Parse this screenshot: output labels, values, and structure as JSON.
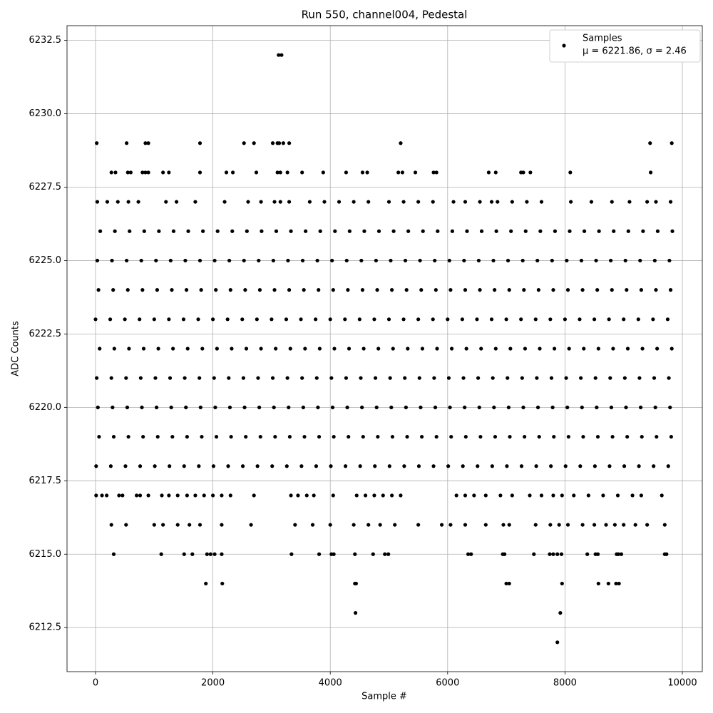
{
  "chart_data": {
    "type": "scatter",
    "title": "Run 550, channel004, Pedestal",
    "xlabel": "Sample #",
    "ylabel": "ADC Counts",
    "xlim": [
      -486,
      10340
    ],
    "ylim": [
      6211.0,
      6233.0
    ],
    "xticks": [
      0,
      2000,
      4000,
      6000,
      8000,
      10000
    ],
    "yticks": [
      6212.5,
      {
        "value": 6215,
        "label": "6215.0"
      },
      6217.5,
      {
        "value": 6220,
        "label": "6220.0"
      },
      6222.5,
      {
        "value": 6225,
        "label": "6225.0"
      },
      6227.5,
      {
        "value": 6230,
        "label": "6230.0"
      },
      6232.5
    ],
    "grid": true,
    "legend_position": "upper right",
    "legend_text": "μ = 6221.86, σ = 2.46",
    "x": [
      10,
      260,
      510,
      760,
      1010,
      1260,
      1510,
      1760,
      2010,
      2260,
      2510,
      2760,
      3010,
      3260,
      3510,
      3760,
      4010,
      4260,
      4510,
      4760,
      5010,
      5260,
      5510,
      5760,
      6010,
      6260,
      6510,
      6760,
      7010,
      7260,
      7510,
      7760,
      8010,
      8260,
      8510,
      8760,
      9010,
      9260,
      9510,
      9760,
      60,
      310,
      560,
      810,
      1060,
      1310,
      1560,
      1810,
      2060,
      2310,
      2560,
      2810,
      3060,
      3310,
      3560,
      3810,
      4060,
      4310,
      4560,
      4810,
      5060,
      5310,
      5560,
      5810,
      6060,
      6310,
      6560,
      6810,
      7060,
      7310,
      7560,
      7810,
      8060,
      8310,
      8560,
      8810,
      9060,
      9310,
      9560,
      9810,
      40,
      290,
      540,
      790,
      1040,
      1290,
      1540,
      1790,
      2040,
      2290,
      2540,
      2790,
      3040,
      3290,
      3540,
      3790,
      4040,
      4290,
      4540,
      4790,
      5040,
      5290,
      5540,
      5790,
      6040,
      6290,
      6540,
      6790,
      7040,
      7290,
      7540,
      7790,
      8040,
      8290,
      8540,
      8790,
      9040,
      9290,
      9540,
      9790,
      20,
      270,
      520,
      770,
      1020,
      1270,
      1520,
      1770,
      2020,
      2270,
      2520,
      2770,
      3020,
      3270,
      3520,
      3770,
      4020,
      4270,
      4520,
      4770,
      5020,
      5270,
      5520,
      5770,
      6020,
      6270,
      6520,
      6770,
      7020,
      7270,
      7520,
      7770,
      8020,
      8270,
      8520,
      8770,
      9020,
      9270,
      9520,
      9770,
      70,
      320,
      570,
      820,
      1070,
      1320,
      1570,
      1820,
      2070,
      2320,
      2570,
      2820,
      3070,
      3320,
      3570,
      3820,
      4070,
      4320,
      4570,
      4820,
      5070,
      5320,
      5570,
      5820,
      6070,
      6320,
      6570,
      6820,
      7070,
      7320,
      7570,
      7820,
      8070,
      8320,
      8570,
      8820,
      9070,
      9320,
      9570,
      9820,
      0,
      250,
      500,
      750,
      1000,
      1250,
      1500,
      1750,
      2000,
      2250,
      2500,
      2750,
      3000,
      3250,
      3500,
      3750,
      4000,
      4250,
      4500,
      4750,
      5000,
      5250,
      5500,
      5750,
      6000,
      6250,
      6500,
      6750,
      7000,
      7250,
      7500,
      7750,
      8000,
      8250,
      8500,
      8750,
      9000,
      9250,
      9500,
      9750,
      50,
      300,
      550,
      800,
      1050,
      1300,
      1550,
      1800,
      2050,
      2300,
      2550,
      2800,
      3050,
      3300,
      3550,
      3800,
      4050,
      4300,
      4550,
      4800,
      5050,
      5300,
      5550,
      5800,
      6050,
      6300,
      6550,
      6800,
      7050,
      7300,
      7550,
      7800,
      8050,
      8300,
      8550,
      8800,
      9050,
      9300,
      9550,
      9800,
      30,
      280,
      530,
      780,
      1030,
      1280,
      1530,
      1780,
      2030,
      2280,
      2530,
      2780,
      3030,
      3280,
      3530,
      3780,
      4030,
      4280,
      4530,
      4780,
      5030,
      5280,
      5530,
      5780,
      6030,
      6280,
      6530,
      6780,
      7030,
      7280,
      7530,
      7780,
      8030,
      8280,
      8530,
      8780,
      9030,
      9280,
      9530,
      9780,
      80,
      330,
      580,
      830,
      1080,
      1330,
      1580,
      1830,
      2080,
      2330,
      2580,
      2830,
      3080,
      3330,
      3580,
      3830,
      4080,
      4330,
      4580,
      4830,
      5080,
      5330,
      5580,
      5830,
      6080,
      6330,
      6580,
      6830,
      7080,
      7330,
      7580,
      7830,
      8080,
      8330,
      8580,
      8830,
      9080,
      9330,
      9580,
      9830,
      30,
      200,
      380,
      560,
      730,
      1200,
      1380,
      1700,
      2200,
      2600,
      2820,
      3050,
      3150,
      3300,
      3650,
      3900,
      4150,
      4400,
      4650,
      5000,
      5250,
      5500,
      5750,
      6100,
      6300,
      6550,
      6750,
      6850,
      7100,
      7350,
      7600,
      8100,
      8450,
      8800,
      9100,
      9400,
      9550,
      9800,
      10,
      110,
      190,
      400,
      460,
      700,
      760,
      900,
      1130,
      1250,
      1400,
      1560,
      1700,
      1850,
      2000,
      2150,
      2300,
      2700,
      3330,
      3450,
      3600,
      3720,
      4050,
      4450,
      4600,
      4750,
      4900,
      5050,
      5200,
      6150,
      6300,
      6450,
      6650,
      6900,
      7100,
      7400,
      7600,
      7800,
      7950,
      8150,
      8400,
      8650,
      8900,
      9150,
      9300,
      9650,
      270,
      520,
      1000,
      1150,
      1400,
      1600,
      1780,
      2150,
      2650,
      3400,
      3700,
      4000,
      4400,
      4650,
      4850,
      5100,
      5500,
      5900,
      6050,
      6300,
      6650,
      6950,
      7050,
      7500,
      7750,
      7900,
      8050,
      8300,
      8500,
      8700,
      8850,
      9000,
      9200,
      9400,
      9700,
      270,
      340,
      550,
      600,
      800,
      850,
      900,
      1150,
      1250,
      1780,
      2230,
      2340,
      2740,
      3100,
      3150,
      3270,
      3520,
      3880,
      4270,
      4550,
      4630,
      5160,
      5230,
      5450,
      5760,
      5810,
      6700,
      6820,
      7250,
      7290,
      7410,
      8090,
      9460,
      20,
      530,
      850,
      900,
      1780,
      2530,
      2700,
      3020,
      3100,
      3130,
      3200,
      3300,
      5200,
      9450,
      9820,
      310,
      1120,
      1510,
      1650,
      1900,
      1960,
      2030,
      2150,
      3340,
      3810,
      4020,
      4060,
      4420,
      4730,
      4930,
      4990,
      6350,
      6400,
      6940,
      6970,
      7470,
      7740,
      7800,
      7870,
      7940,
      8380,
      8520,
      8560,
      8880,
      8910,
      8960,
      9700,
      9730,
      1880,
      2160,
      4420,
      4440,
      7000,
      7050,
      7950,
      8570,
      8740,
      8870,
      8920,
      4430,
      7920,
      7870,
      3120,
      3170
    ],
    "series": [
      {
        "name": "Samples",
        "color": "#000000",
        "values": [
          6218,
          6218,
          6218,
          6218,
          6218,
          6218,
          6218,
          6218,
          6218,
          6218,
          6218,
          6218,
          6218,
          6218,
          6218,
          6218,
          6218,
          6218,
          6218,
          6218,
          6218,
          6218,
          6218,
          6218,
          6218,
          6218,
          6218,
          6218,
          6218,
          6218,
          6218,
          6218,
          6218,
          6218,
          6218,
          6218,
          6218,
          6218,
          6218,
          6218,
          6219,
          6219,
          6219,
          6219,
          6219,
          6219,
          6219,
          6219,
          6219,
          6219,
          6219,
          6219,
          6219,
          6219,
          6219,
          6219,
          6219,
          6219,
          6219,
          6219,
          6219,
          6219,
          6219,
          6219,
          6219,
          6219,
          6219,
          6219,
          6219,
          6219,
          6219,
          6219,
          6219,
          6219,
          6219,
          6219,
          6219,
          6219,
          6219,
          6219,
          6220,
          6220,
          6220,
          6220,
          6220,
          6220,
          6220,
          6220,
          6220,
          6220,
          6220,
          6220,
          6220,
          6220,
          6220,
          6220,
          6220,
          6220,
          6220,
          6220,
          6220,
          6220,
          6220,
          6220,
          6220,
          6220,
          6220,
          6220,
          6220,
          6220,
          6220,
          6220,
          6220,
          6220,
          6220,
          6220,
          6220,
          6220,
          6220,
          6220,
          6221,
          6221,
          6221,
          6221,
          6221,
          6221,
          6221,
          6221,
          6221,
          6221,
          6221,
          6221,
          6221,
          6221,
          6221,
          6221,
          6221,
          6221,
          6221,
          6221,
          6221,
          6221,
          6221,
          6221,
          6221,
          6221,
          6221,
          6221,
          6221,
          6221,
          6221,
          6221,
          6221,
          6221,
          6221,
          6221,
          6221,
          6221,
          6221,
          6221,
          6222,
          6222,
          6222,
          6222,
          6222,
          6222,
          6222,
          6222,
          6222,
          6222,
          6222,
          6222,
          6222,
          6222,
          6222,
          6222,
          6222,
          6222,
          6222,
          6222,
          6222,
          6222,
          6222,
          6222,
          6222,
          6222,
          6222,
          6222,
          6222,
          6222,
          6222,
          6222,
          6222,
          6222,
          6222,
          6222,
          6222,
          6222,
          6222,
          6222,
          6223,
          6223,
          6223,
          6223,
          6223,
          6223,
          6223,
          6223,
          6223,
          6223,
          6223,
          6223,
          6223,
          6223,
          6223,
          6223,
          6223,
          6223,
          6223,
          6223,
          6223,
          6223,
          6223,
          6223,
          6223,
          6223,
          6223,
          6223,
          6223,
          6223,
          6223,
          6223,
          6223,
          6223,
          6223,
          6223,
          6223,
          6223,
          6223,
          6223,
          6224,
          6224,
          6224,
          6224,
          6224,
          6224,
          6224,
          6224,
          6224,
          6224,
          6224,
          6224,
          6224,
          6224,
          6224,
          6224,
          6224,
          6224,
          6224,
          6224,
          6224,
          6224,
          6224,
          6224,
          6224,
          6224,
          6224,
          6224,
          6224,
          6224,
          6224,
          6224,
          6224,
          6224,
          6224,
          6224,
          6224,
          6224,
          6224,
          6224,
          6225,
          6225,
          6225,
          6225,
          6225,
          6225,
          6225,
          6225,
          6225,
          6225,
          6225,
          6225,
          6225,
          6225,
          6225,
          6225,
          6225,
          6225,
          6225,
          6225,
          6225,
          6225,
          6225,
          6225,
          6225,
          6225,
          6225,
          6225,
          6225,
          6225,
          6225,
          6225,
          6225,
          6225,
          6225,
          6225,
          6225,
          6225,
          6225,
          6225,
          6226,
          6226,
          6226,
          6226,
          6226,
          6226,
          6226,
          6226,
          6226,
          6226,
          6226,
          6226,
          6226,
          6226,
          6226,
          6226,
          6226,
          6226,
          6226,
          6226,
          6226,
          6226,
          6226,
          6226,
          6226,
          6226,
          6226,
          6226,
          6226,
          6226,
          6226,
          6226,
          6226,
          6226,
          6226,
          6226,
          6226,
          6226,
          6226,
          6226,
          6227,
          6227,
          6227,
          6227,
          6227,
          6227,
          6227,
          6227,
          6227,
          6227,
          6227,
          6227,
          6227,
          6227,
          6227,
          6227,
          6227,
          6227,
          6227,
          6227,
          6227,
          6227,
          6227,
          6227,
          6227,
          6227,
          6227,
          6227,
          6227,
          6227,
          6227,
          6227,
          6227,
          6227,
          6227,
          6227,
          6227,
          6227,
          6217,
          6217,
          6217,
          6217,
          6217,
          6217,
          6217,
          6217,
          6217,
          6217,
          6217,
          6217,
          6217,
          6217,
          6217,
          6217,
          6217,
          6217,
          6217,
          6217,
          6217,
          6217,
          6217,
          6217,
          6217,
          6217,
          6217,
          6217,
          6217,
          6217,
          6217,
          6217,
          6217,
          6217,
          6217,
          6217,
          6217,
          6217,
          6217,
          6217,
          6217,
          6217,
          6217,
          6217,
          6217,
          6217,
          6216,
          6216,
          6216,
          6216,
          6216,
          6216,
          6216,
          6216,
          6216,
          6216,
          6216,
          6216,
          6216,
          6216,
          6216,
          6216,
          6216,
          6216,
          6216,
          6216,
          6216,
          6216,
          6216,
          6216,
          6216,
          6216,
          6216,
          6216,
          6216,
          6216,
          6216,
          6216,
          6216,
          6216,
          6216,
          6228,
          6228,
          6228,
          6228,
          6228,
          6228,
          6228,
          6228,
          6228,
          6228,
          6228,
          6228,
          6228,
          6228,
          6228,
          6228,
          6228,
          6228,
          6228,
          6228,
          6228,
          6228,
          6228,
          6228,
          6228,
          6228,
          6228,
          6228,
          6228,
          6228,
          6228,
          6228,
          6228,
          6229,
          6229,
          6229,
          6229,
          6229,
          6229,
          6229,
          6229,
          6229,
          6229,
          6229,
          6229,
          6229,
          6229,
          6229,
          6215,
          6215,
          6215,
          6215,
          6215,
          6215,
          6215,
          6215,
          6215,
          6215,
          6215,
          6215,
          6215,
          6215,
          6215,
          6215,
          6215,
          6215,
          6215,
          6215,
          6215,
          6215,
          6215,
          6215,
          6215,
          6215,
          6215,
          6215,
          6215,
          6215,
          6215,
          6215,
          6215,
          6214,
          6214,
          6214,
          6214,
          6214,
          6214,
          6214,
          6214,
          6214,
          6214,
          6214,
          6213,
          6213,
          6212,
          6232,
          6232
        ]
      }
    ]
  }
}
